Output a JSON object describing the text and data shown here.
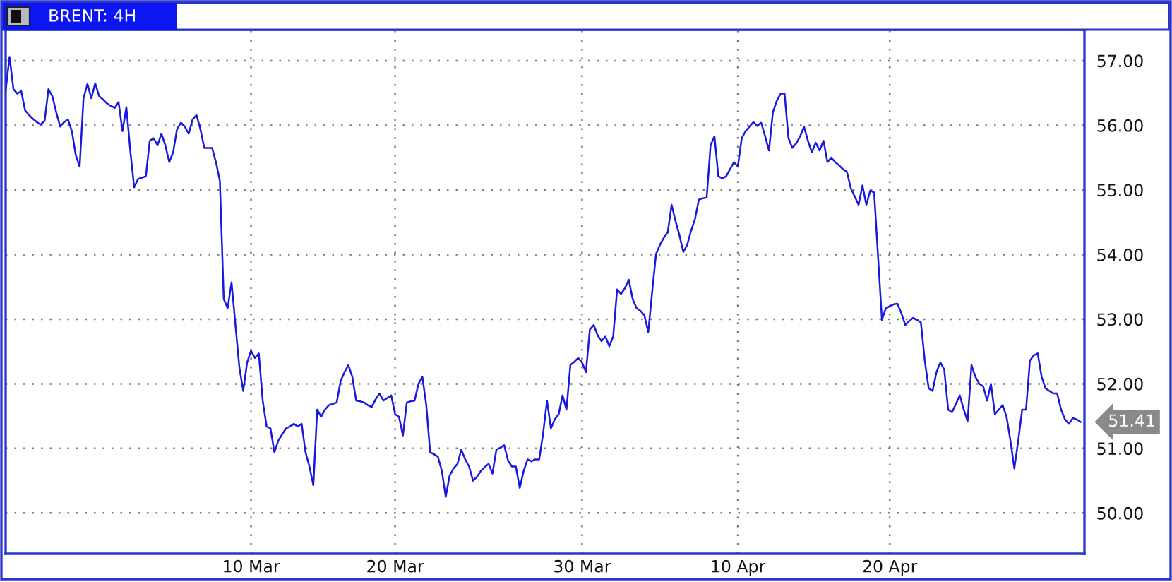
{
  "chart_data": {
    "type": "line",
    "title": "BRENT: 4H",
    "categories": [
      null,
      null,
      null,
      null,
      null,
      null,
      null,
      null,
      null,
      null,
      null,
      null,
      null,
      null,
      null,
      null,
      null,
      null,
      null,
      null,
      null,
      null,
      null,
      null,
      null,
      null,
      null,
      null,
      null,
      null,
      null,
      null,
      null,
      null,
      null,
      null,
      null,
      null,
      null,
      null,
      null,
      null,
      null,
      null,
      null,
      null,
      null,
      null,
      null,
      null,
      null,
      null,
      null,
      null,
      null,
      null,
      null,
      null,
      null,
      null,
      null,
      null,
      null,
      "10 Mar",
      null,
      null,
      null,
      null,
      null,
      null,
      null,
      null,
      null,
      null,
      null,
      null,
      null,
      null,
      null,
      null,
      null,
      null,
      null,
      null,
      null,
      null,
      null,
      null,
      null,
      null,
      null,
      null,
      null,
      null,
      null,
      null,
      null,
      null,
      null,
      null,
      "20 Mar",
      null,
      null,
      null,
      null,
      null,
      null,
      null,
      null,
      null,
      null,
      null,
      null,
      null,
      null,
      null,
      null,
      null,
      null,
      null,
      null,
      null,
      null,
      null,
      null,
      null,
      null,
      null,
      null,
      null,
      null,
      null,
      null,
      null,
      null,
      null,
      null,
      null,
      null,
      null,
      null,
      null,
      null,
      null,
      null,
      null,
      null,
      null,
      "30 Mar",
      null,
      null,
      null,
      null,
      null,
      null,
      null,
      null,
      null,
      null,
      null,
      null,
      null,
      null,
      null,
      null,
      null,
      null,
      null,
      null,
      null,
      null,
      null,
      null,
      null,
      null,
      null,
      null,
      null,
      null,
      null,
      null,
      null,
      null,
      null,
      null,
      null,
      null,
      null,
      "10 Apr",
      null,
      null,
      null,
      null,
      null,
      null,
      null,
      null,
      null,
      null,
      null,
      null,
      null,
      null,
      null,
      null,
      null,
      null,
      null,
      null,
      null,
      null,
      null,
      null,
      null,
      null,
      null,
      null,
      null,
      null,
      null,
      null,
      null,
      null,
      null,
      null,
      null,
      null,
      "20 Apr",
      null,
      null,
      null,
      null,
      null,
      null,
      null,
      null,
      null,
      null,
      null,
      null,
      null,
      null,
      null,
      null,
      null,
      null,
      null,
      null,
      null,
      null,
      null,
      null,
      null,
      null,
      null,
      null,
      null,
      null,
      null,
      null,
      null,
      null,
      null,
      null,
      null,
      null,
      null,
      null,
      null,
      null,
      null,
      null,
      null,
      null,
      null,
      null,
      null,
      null
    ],
    "series": [
      {
        "color": "#1818e0",
        "values": [
          56.53,
          57.06,
          56.56,
          56.49,
          56.53,
          56.23,
          56.16,
          56.1,
          56.05,
          56.01,
          56.07,
          56.56,
          56.45,
          56.2,
          55.98,
          56.05,
          56.09,
          55.91,
          55.54,
          55.36,
          56.42,
          56.64,
          56.42,
          56.65,
          56.45,
          56.4,
          56.34,
          56.3,
          56.27,
          56.36,
          55.91,
          56.28,
          55.61,
          55.04,
          55.17,
          55.19,
          55.21,
          55.76,
          55.8,
          55.69,
          55.87,
          55.69,
          55.43,
          55.58,
          55.94,
          56.04,
          55.98,
          55.87,
          56.09,
          56.16,
          55.94,
          55.65,
          55.65,
          55.65,
          55.43,
          55.14,
          53.31,
          53.17,
          53.57,
          52.91,
          52.26,
          51.89,
          52.33,
          52.51,
          52.4,
          52.47,
          51.74,
          51.34,
          51.31,
          50.94,
          51.12,
          51.22,
          51.31,
          51.34,
          51.38,
          51.34,
          51.38,
          50.94,
          50.72,
          50.43,
          51.6,
          51.49,
          51.6,
          51.67,
          51.69,
          51.71,
          52.04,
          52.18,
          52.29,
          52.11,
          51.74,
          51.73,
          51.71,
          51.67,
          51.64,
          51.76,
          51.85,
          51.74,
          51.78,
          51.82,
          51.53,
          51.49,
          51.2,
          51.71,
          51.73,
          51.74,
          52.0,
          52.11,
          51.67,
          50.94,
          50.91,
          50.87,
          50.65,
          50.25,
          50.58,
          50.69,
          50.76,
          50.98,
          50.83,
          50.72,
          50.5,
          50.56,
          50.65,
          50.71,
          50.76,
          50.61,
          50.98,
          51.01,
          51.05,
          50.81,
          50.72,
          50.72,
          50.39,
          50.65,
          50.83,
          50.8,
          50.83,
          50.83,
          51.23,
          51.74,
          51.31,
          51.45,
          51.53,
          51.82,
          51.6,
          52.29,
          52.34,
          52.4,
          52.33,
          52.18,
          52.84,
          52.91,
          52.75,
          52.66,
          52.73,
          52.58,
          52.73,
          53.46,
          53.39,
          53.48,
          53.61,
          53.31,
          53.17,
          53.13,
          53.06,
          52.8,
          53.42,
          54.01,
          54.15,
          54.26,
          54.34,
          54.77,
          54.52,
          54.3,
          54.04,
          54.15,
          54.37,
          54.55,
          54.85,
          54.87,
          54.88,
          55.69,
          55.83,
          55.21,
          55.18,
          55.21,
          55.32,
          55.43,
          55.36,
          55.8,
          55.91,
          55.98,
          56.05,
          55.99,
          56.04,
          55.83,
          55.61,
          56.2,
          56.38,
          56.49,
          56.49,
          55.8,
          55.65,
          55.72,
          55.83,
          55.98,
          55.76,
          55.58,
          55.73,
          55.61,
          55.76,
          55.43,
          55.5,
          55.43,
          55.38,
          55.32,
          55.28,
          55.03,
          54.9,
          54.77,
          55.07,
          54.77,
          54.99,
          54.96,
          53.97,
          52.99,
          53.17,
          53.2,
          53.23,
          53.24,
          53.09,
          52.91,
          52.97,
          53.02,
          52.99,
          52.95,
          52.36,
          51.93,
          51.89,
          52.18,
          52.33,
          52.22,
          51.6,
          51.56,
          51.69,
          51.82,
          51.6,
          51.42,
          52.29,
          52.11,
          52.0,
          51.96,
          51.74,
          52.0,
          51.53,
          51.6,
          51.67,
          51.49,
          51.12,
          50.69,
          51.12,
          51.6,
          51.6,
          52.36,
          52.44,
          52.47,
          52.11,
          51.93,
          51.89,
          51.85,
          51.85,
          51.6,
          51.45,
          51.38,
          51.47,
          51.45,
          51.41,
          null
        ]
      }
    ],
    "ylim": [
      49.37,
      57.48
    ],
    "yticks": [
      {
        "value": 50,
        "label": "50.00"
      },
      {
        "value": 51,
        "label": "51.00"
      },
      {
        "value": 52,
        "label": "52.00"
      },
      {
        "value": 53,
        "label": "53.00"
      },
      {
        "value": 54,
        "label": "54.00"
      },
      {
        "value": 55,
        "label": "55.00"
      },
      {
        "value": 56,
        "label": "56.00"
      },
      {
        "value": 57,
        "label": "57.00"
      }
    ],
    "grid": true,
    "annotations": [
      "51.41"
    ]
  }
}
